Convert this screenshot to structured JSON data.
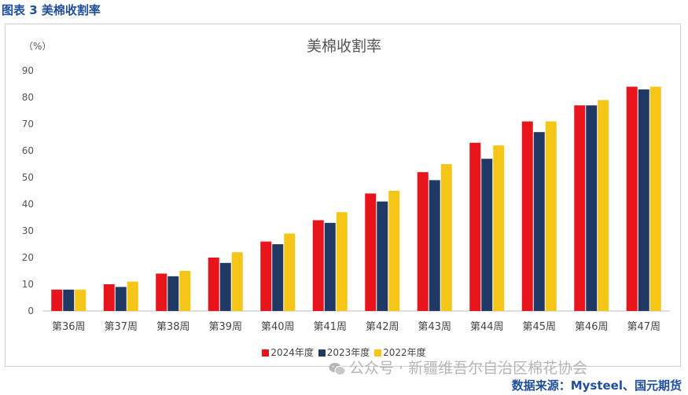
{
  "figure_caption": "图表 3  美棉收割率",
  "watermark": "公众号 · 新疆维吾尔自治区棉花协会",
  "source": "数据来源：Mysteel、国元期货",
  "chart_data": {
    "type": "bar",
    "title": "美棉收割率",
    "unit": "（%）",
    "xlabel": "",
    "ylabel": "",
    "ylim": [
      0,
      90
    ],
    "yticks": [
      0,
      10,
      20,
      30,
      40,
      50,
      60,
      70,
      80,
      90
    ],
    "grid": false,
    "legend_position": "bottom",
    "categories": [
      "第36周",
      "第37周",
      "第38周",
      "第39周",
      "第40周",
      "第41周",
      "第42周",
      "第43周",
      "第44周",
      "第45周",
      "第46周",
      "第47周"
    ],
    "series": [
      {
        "name": "2024年度",
        "color": "#e8141b",
        "values": [
          8,
          10,
          14,
          20,
          26,
          34,
          44,
          52,
          63,
          71,
          77,
          84
        ]
      },
      {
        "name": "2023年度",
        "color": "#1f3864",
        "values": [
          8,
          9,
          13,
          18,
          25,
          33,
          41,
          49,
          57,
          67,
          77,
          83
        ]
      },
      {
        "name": "2022年度",
        "color": "#f5c518",
        "values": [
          8,
          11,
          15,
          22,
          29,
          37,
          45,
          55,
          62,
          71,
          79,
          84
        ]
      }
    ]
  }
}
